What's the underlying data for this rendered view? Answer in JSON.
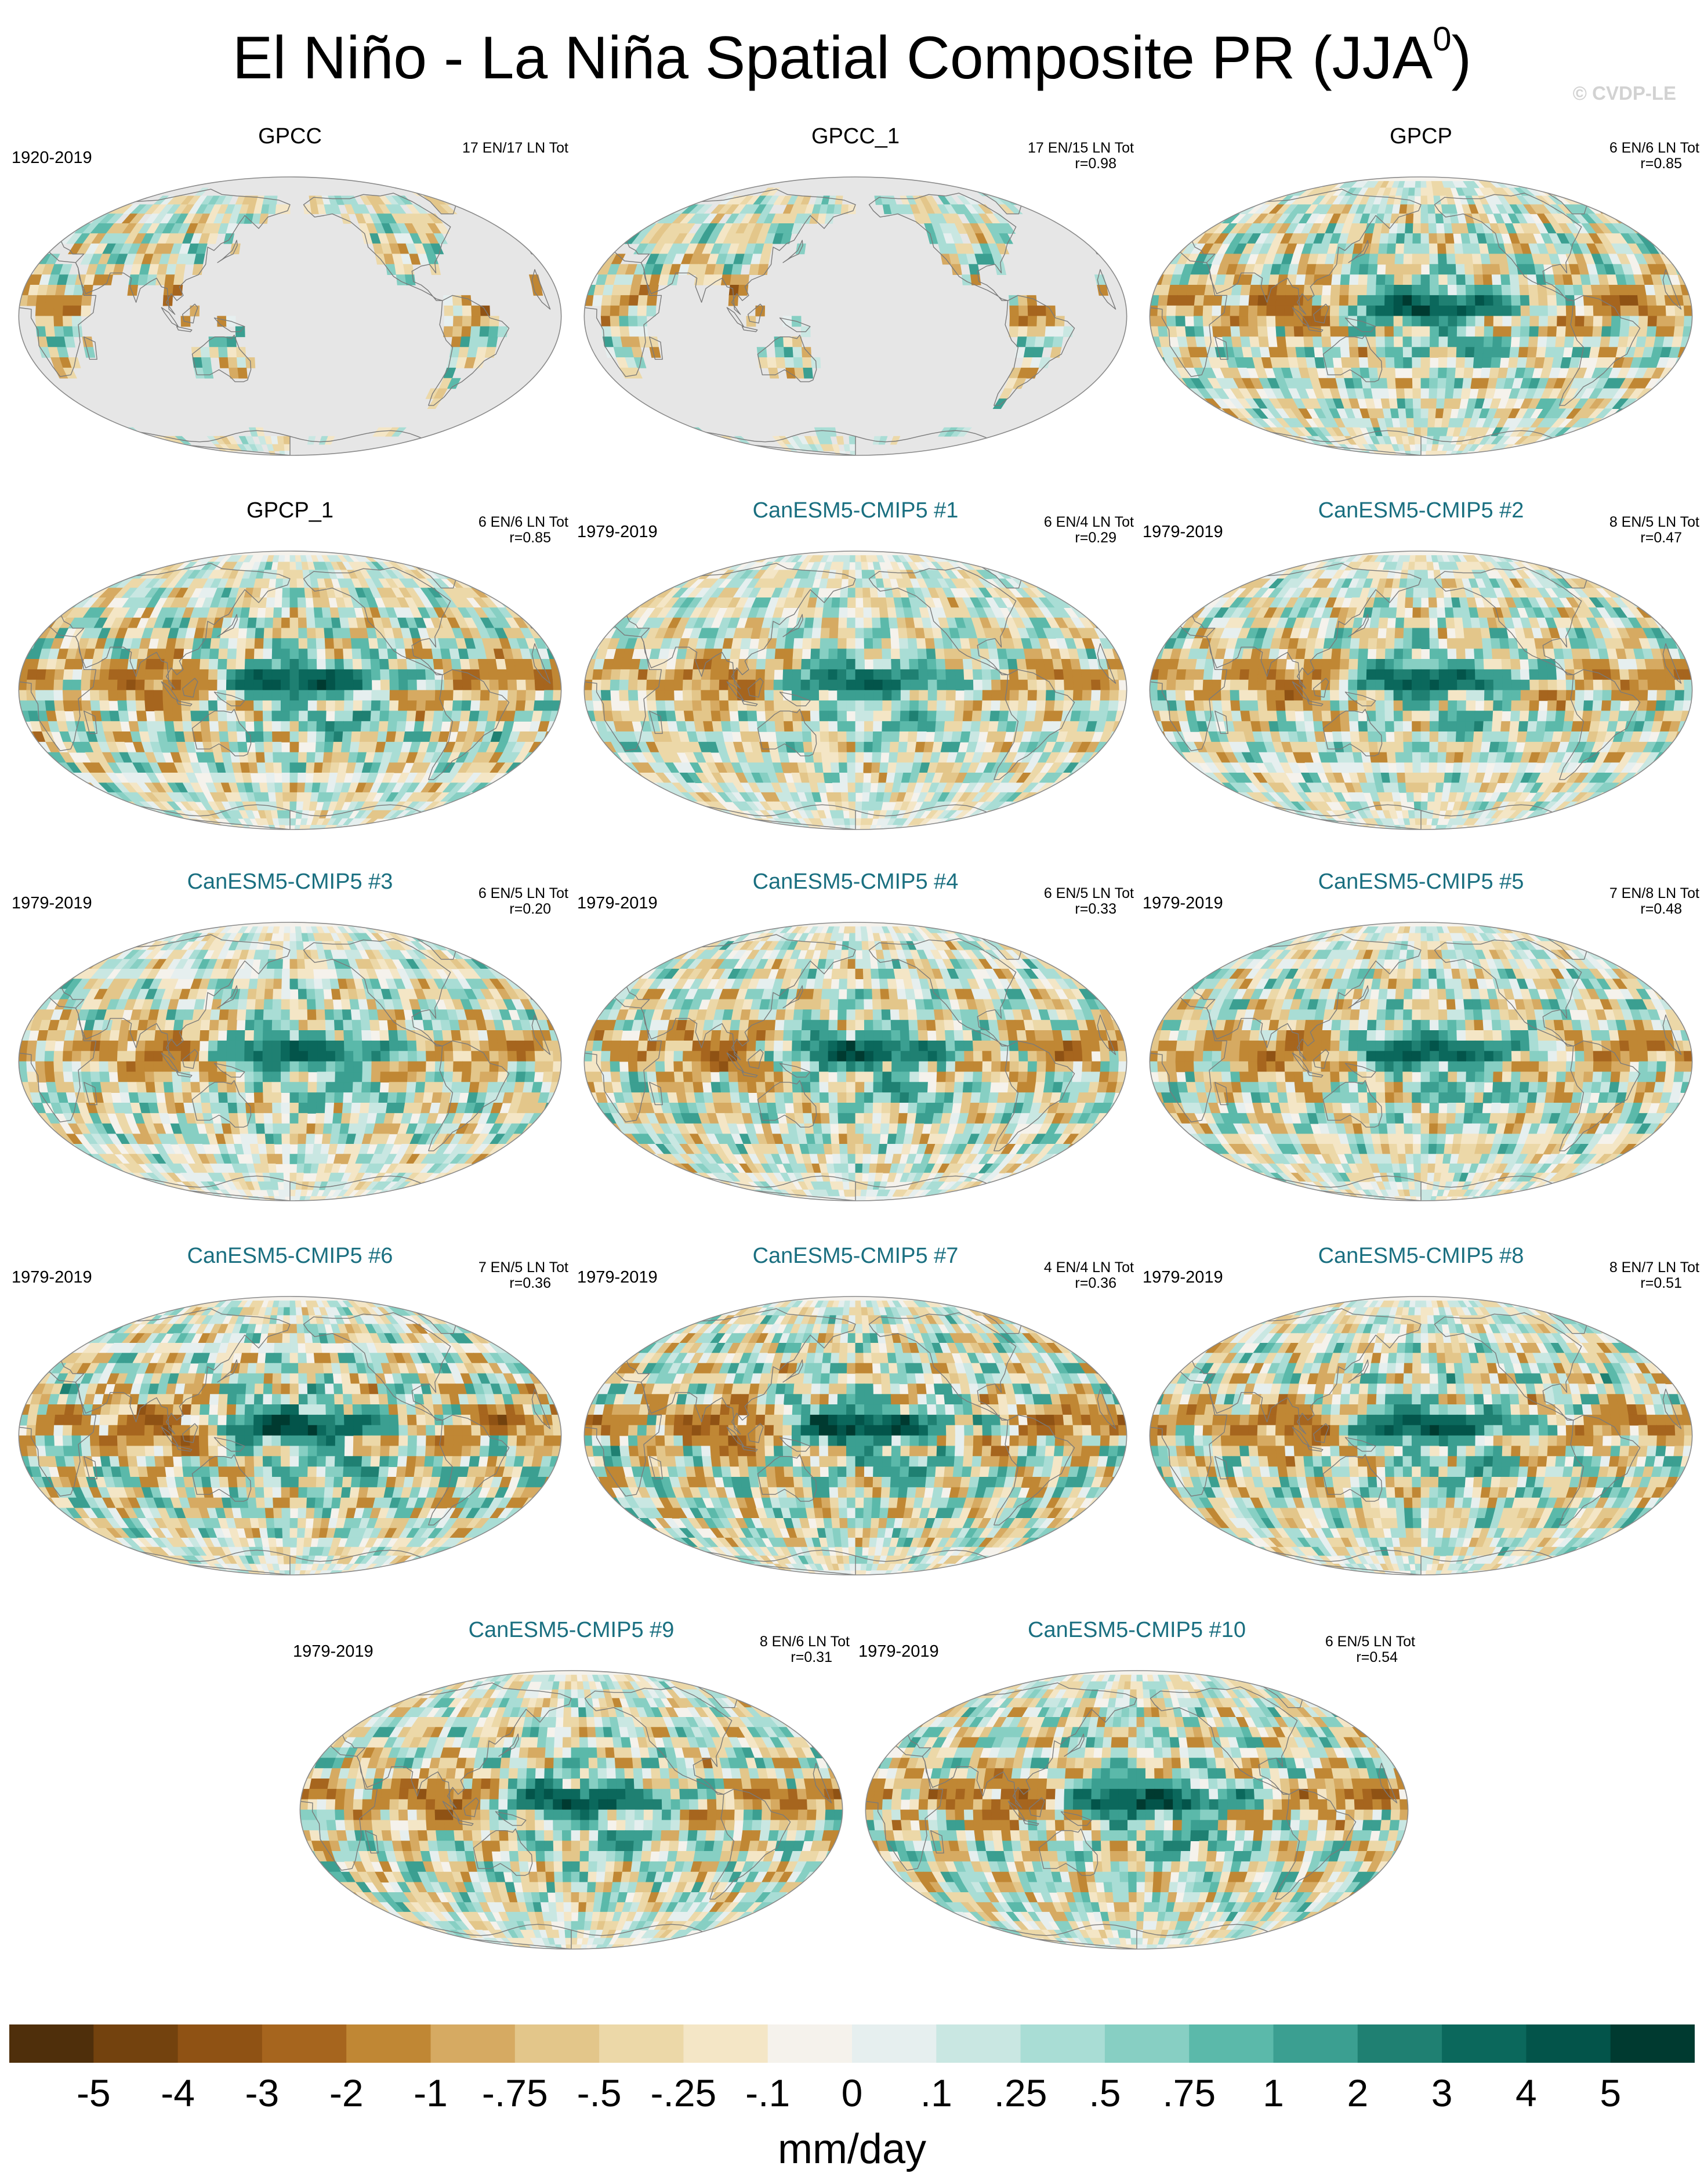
{
  "title": "El Niño - La Niña Spatial Composite PR (JJA",
  "title_superscript": "0",
  "title_close": ")",
  "watermark": "© CVDP-LE",
  "chart_data": {
    "type": "heatmap",
    "title": "El Niño - La Niña Spatial Composite PR (JJA0)",
    "units": "mm/day",
    "projection": "Robinson, Pacific-centered",
    "colormap": "brown-white-teal diverging",
    "colorbar": {
      "levels": [
        "-5",
        "-4",
        "-3",
        "-2",
        "-1",
        "-.75",
        "-.5",
        "-.25",
        "-.1",
        "0",
        ".1",
        ".25",
        ".5",
        ".75",
        "1",
        "2",
        "3",
        "4",
        "5"
      ],
      "colors": [
        "#4f2f0b",
        "#73420e",
        "#8f5214",
        "#a6651e",
        "#c08734",
        "#d6aa62",
        "#e3c68a",
        "#ecd8a8",
        "#f4e6c6",
        "#f5f2ec",
        "#e6efef",
        "#c9e7e2",
        "#a9ddd5",
        "#87cfc3",
        "#5bb9aa",
        "#3b9f91",
        "#1f8072",
        "#0b685c",
        "#03544a",
        "#003a30"
      ]
    },
    "panels": [
      {
        "title": "GPCC",
        "period": "1920-2019",
        "stats": "17 EN/17 LN Tot",
        "corr": "",
        "type": "obs",
        "land_only": true,
        "amp": 1.0
      },
      {
        "title": "GPCC_1",
        "period": "",
        "stats": "17 EN/15 LN Tot",
        "corr": "r=0.98",
        "type": "obs",
        "land_only": true,
        "amp": 0.95
      },
      {
        "title": "GPCP",
        "period": "",
        "stats": "6 EN/6 LN Tot",
        "corr": "r=0.85",
        "type": "obs",
        "land_only": false,
        "amp": 1.0
      },
      {
        "title": "GPCP_1",
        "period": "",
        "stats": "6 EN/6 LN Tot",
        "corr": "r=0.85",
        "type": "obs",
        "land_only": false,
        "amp": 1.0
      },
      {
        "title": "CanESM5-CMIP5 #1",
        "period": "1979-2019",
        "stats": "6 EN/4 LN Tot",
        "corr": "r=0.29",
        "type": "model",
        "land_only": false,
        "amp": 0.8
      },
      {
        "title": "CanESM5-CMIP5 #2",
        "period": "1979-2019",
        "stats": "8 EN/5 LN Tot",
        "corr": "r=0.47",
        "type": "model",
        "land_only": false,
        "amp": 0.9
      },
      {
        "title": "CanESM5-CMIP5 #3",
        "period": "1979-2019",
        "stats": "6 EN/5 LN Tot",
        "corr": "r=0.20",
        "type": "model",
        "land_only": false,
        "amp": 0.85
      },
      {
        "title": "CanESM5-CMIP5 #4",
        "period": "1979-2019",
        "stats": "6 EN/5 LN Tot",
        "corr": "r=0.33",
        "type": "model",
        "land_only": false,
        "amp": 0.95
      },
      {
        "title": "CanESM5-CMIP5 #5",
        "period": "1979-2019",
        "stats": "7 EN/8 LN Tot",
        "corr": "r=0.48",
        "type": "model",
        "land_only": false,
        "amp": 0.9
      },
      {
        "title": "CanESM5-CMIP5 #6",
        "period": "1979-2019",
        "stats": "7 EN/5 LN Tot",
        "corr": "r=0.36",
        "type": "model",
        "land_only": false,
        "amp": 1.1
      },
      {
        "title": "CanESM5-CMIP5 #7",
        "period": "1979-2019",
        "stats": "4 EN/4 LN Tot",
        "corr": "r=0.36",
        "type": "model",
        "land_only": false,
        "amp": 1.15
      },
      {
        "title": "CanESM5-CMIP5 #8",
        "period": "1979-2019",
        "stats": "8 EN/7 LN Tot",
        "corr": "r=0.51",
        "type": "model",
        "land_only": false,
        "amp": 1.0
      },
      {
        "title": "CanESM5-CMIP5 #9",
        "period": "1979-2019",
        "stats": "8 EN/6 LN Tot",
        "corr": "r=0.31",
        "type": "model",
        "land_only": false,
        "amp": 1.0
      },
      {
        "title": "CanESM5-CMIP5 #10",
        "period": "1979-2019",
        "stats": "6 EN/5 LN Tot",
        "corr": "r=0.54",
        "type": "model",
        "land_only": false,
        "amp": 1.05
      }
    ]
  }
}
